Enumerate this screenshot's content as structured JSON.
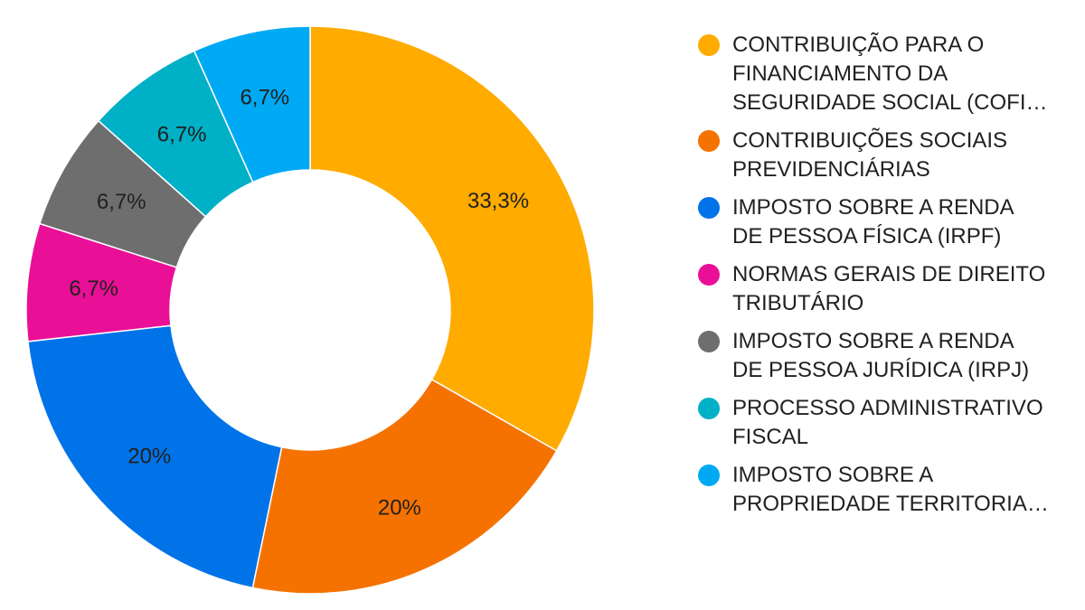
{
  "chart_data": {
    "type": "pie",
    "variant": "donut",
    "legend_position": "right",
    "slices": [
      {
        "label": "CONTRIBUIÇÃO PARA O\nFINANCIAMENTO DA\nSEGURIDADE SOCIAL (COFI…",
        "value": 33.3,
        "display": "33,3%",
        "color": "#FFAB00"
      },
      {
        "label": "CONTRIBUIÇÕES SOCIAIS\nPREVIDENCIÁRIAS",
        "value": 20,
        "display": "20%",
        "color": "#F57200"
      },
      {
        "label": "IMPOSTO SOBRE A RENDA\nDE PESSOA FÍSICA (IRPF)",
        "value": 20,
        "display": "20%",
        "color": "#0073E8"
      },
      {
        "label": "NORMAS GERAIS DE DIREITO\nTRIBUTÁRIO",
        "value": 6.7,
        "display": "6,7%",
        "color": "#EA0F97"
      },
      {
        "label": "IMPOSTO SOBRE A RENDA\nDE PESSOA JURÍDICA (IRPJ)",
        "value": 6.7,
        "display": "6,7%",
        "color": "#6E6E6E"
      },
      {
        "label": "PROCESSO ADMINISTRATIVO\nFISCAL",
        "value": 6.7,
        "display": "6,7%",
        "color": "#00B0C6"
      },
      {
        "label": "IMPOSTO SOBRE A\nPROPRIEDADE TERRITORIA…",
        "value": 6.7,
        "display": "6,7%",
        "color": "#00A9F4"
      }
    ]
  }
}
